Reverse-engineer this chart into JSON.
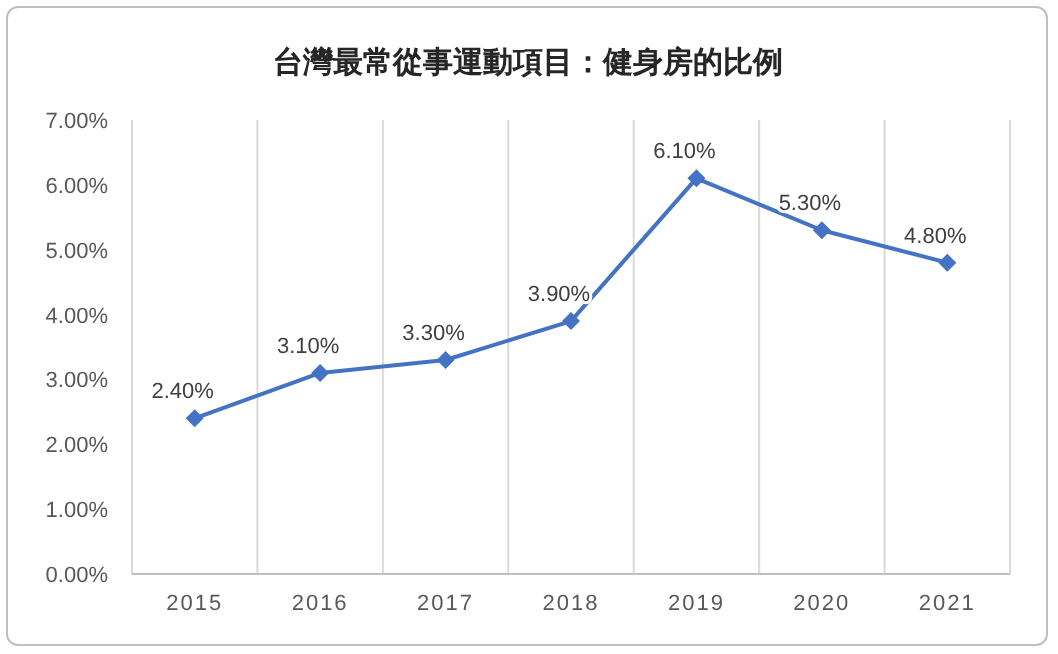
{
  "chart_data": {
    "type": "line",
    "title": "台灣最常從事運動項目：健身房的比例",
    "categories": [
      "2015",
      "2016",
      "2017",
      "2018",
      "2019",
      "2020",
      "2021"
    ],
    "series": [
      {
        "color": "#4472c4",
        "values": [
          2.4,
          3.1,
          3.3,
          3.9,
          6.1,
          5.3,
          4.8
        ],
        "value_labels": [
          "2.40%",
          "3.10%",
          "3.30%",
          "3.90%",
          "6.10%",
          "5.30%",
          "4.80%"
        ]
      }
    ],
    "ylim": [
      0,
      7
    ],
    "yticks": [
      {
        "value": 0,
        "label": "0.00%"
      },
      {
        "value": 1,
        "label": "1.00%"
      },
      {
        "value": 2,
        "label": "2.00%"
      },
      {
        "value": 3,
        "label": "3.00%"
      },
      {
        "value": 4,
        "label": "4.00%"
      },
      {
        "value": 5,
        "label": "5.00%"
      },
      {
        "value": 6,
        "label": "6.00%"
      },
      {
        "value": 7,
        "label": "7.00%"
      }
    ],
    "grid": "x",
    "marker": "diamond",
    "line_style": "solid"
  }
}
